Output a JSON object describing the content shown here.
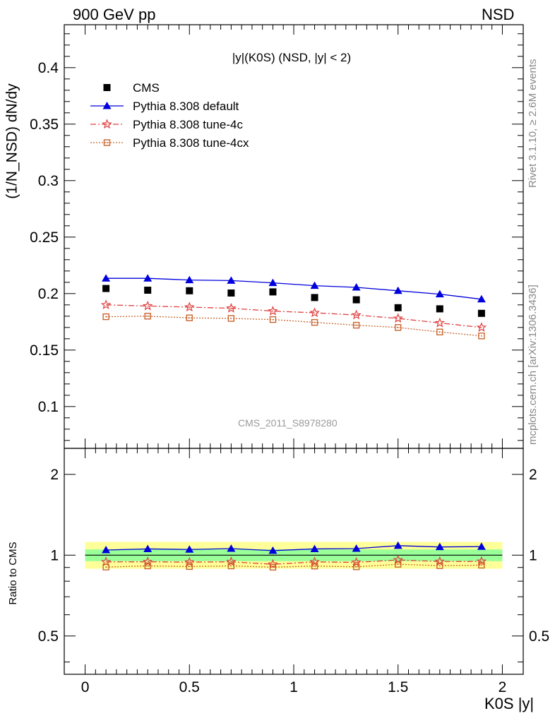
{
  "header": {
    "left": "900 GeV pp",
    "right": "NSD"
  },
  "side_labels": {
    "rivet": "Rivet 3.1.10, ≥ 2.6M events",
    "mcplots": "mcplots.cern.ch [arXiv:1306.3436]"
  },
  "chart_data": [
    {
      "type": "scatter",
      "title": "|y|(K0S) (NSD, |y| < 2)",
      "ylabel": "(1/N_NSD) dN/dy",
      "xlim": [
        -0.1,
        2.1
      ],
      "ylim": [
        0.063,
        0.438
      ],
      "yticks": [
        "0.1",
        "0.15",
        "0.2",
        "0.25",
        "0.3",
        "0.35",
        "0.4"
      ],
      "watermark": "CMS_2011_S8978280",
      "x": [
        0.1,
        0.3,
        0.5,
        0.7,
        0.9,
        1.1,
        1.3,
        1.5,
        1.7,
        1.9
      ],
      "series": [
        {
          "name": "CMS",
          "marker": "square",
          "color": "#000000",
          "values": [
            0.2045,
            0.203,
            0.2025,
            0.2005,
            0.2015,
            0.1965,
            0.1945,
            0.1875,
            0.1865,
            0.1825
          ]
        },
        {
          "name": "Pythia 8.308 default",
          "marker": "triangle",
          "line": "solid",
          "color": "#0000dd",
          "values": [
            0.2135,
            0.2135,
            0.212,
            0.2115,
            0.2095,
            0.207,
            0.2055,
            0.2025,
            0.1995,
            0.195
          ]
        },
        {
          "name": "Pythia 8.308 tune-4c",
          "marker": "star",
          "line": "dashdot",
          "color": "#e04040",
          "values": [
            0.19,
            0.189,
            0.188,
            0.187,
            0.1845,
            0.183,
            0.181,
            0.178,
            0.174,
            0.17
          ]
        },
        {
          "name": "Pythia 8.308 tune-4cx",
          "marker": "open-square",
          "line": "dotted",
          "color": "#c8642d",
          "values": [
            0.1795,
            0.18,
            0.1785,
            0.178,
            0.177,
            0.1745,
            0.172,
            0.17,
            0.166,
            0.1625
          ]
        }
      ]
    },
    {
      "type": "line",
      "ylabel": "Ratio to CMS",
      "xlabel": "K0S |y|",
      "ylim": [
        0.36,
        2.5
      ],
      "log_y": true,
      "yticks": [
        "0.5",
        "1",
        "2"
      ],
      "xticks": [
        "0",
        "0.5",
        "1",
        "1.5",
        "2"
      ],
      "band_colors": {
        "inner": "#99ff99",
        "outer": "#ffff99"
      },
      "band_inner": [
        0.95,
        1.05
      ],
      "band_outer": [
        0.89,
        1.12
      ],
      "x": [
        0.1,
        0.3,
        0.5,
        0.7,
        0.9,
        1.1,
        1.3,
        1.5,
        1.7,
        1.9
      ],
      "series": [
        {
          "name": "Pythia 8.308 default",
          "color": "#0000dd",
          "marker": "triangle",
          "values": [
            1.045,
            1.055,
            1.05,
            1.058,
            1.04,
            1.055,
            1.058,
            1.085,
            1.073,
            1.076
          ]
        },
        {
          "name": "Pythia 8.308 tune-4c",
          "color": "#e04040",
          "marker": "star",
          "values": [
            0.944,
            0.945,
            0.942,
            0.945,
            0.925,
            0.944,
            0.94,
            0.96,
            0.947,
            0.948
          ]
        },
        {
          "name": "Pythia 8.308 tune-4cx",
          "color": "#c8642d",
          "marker": "open-square",
          "values": [
            0.903,
            0.912,
            0.907,
            0.912,
            0.902,
            0.911,
            0.905,
            0.925,
            0.914,
            0.918
          ]
        }
      ]
    }
  ]
}
